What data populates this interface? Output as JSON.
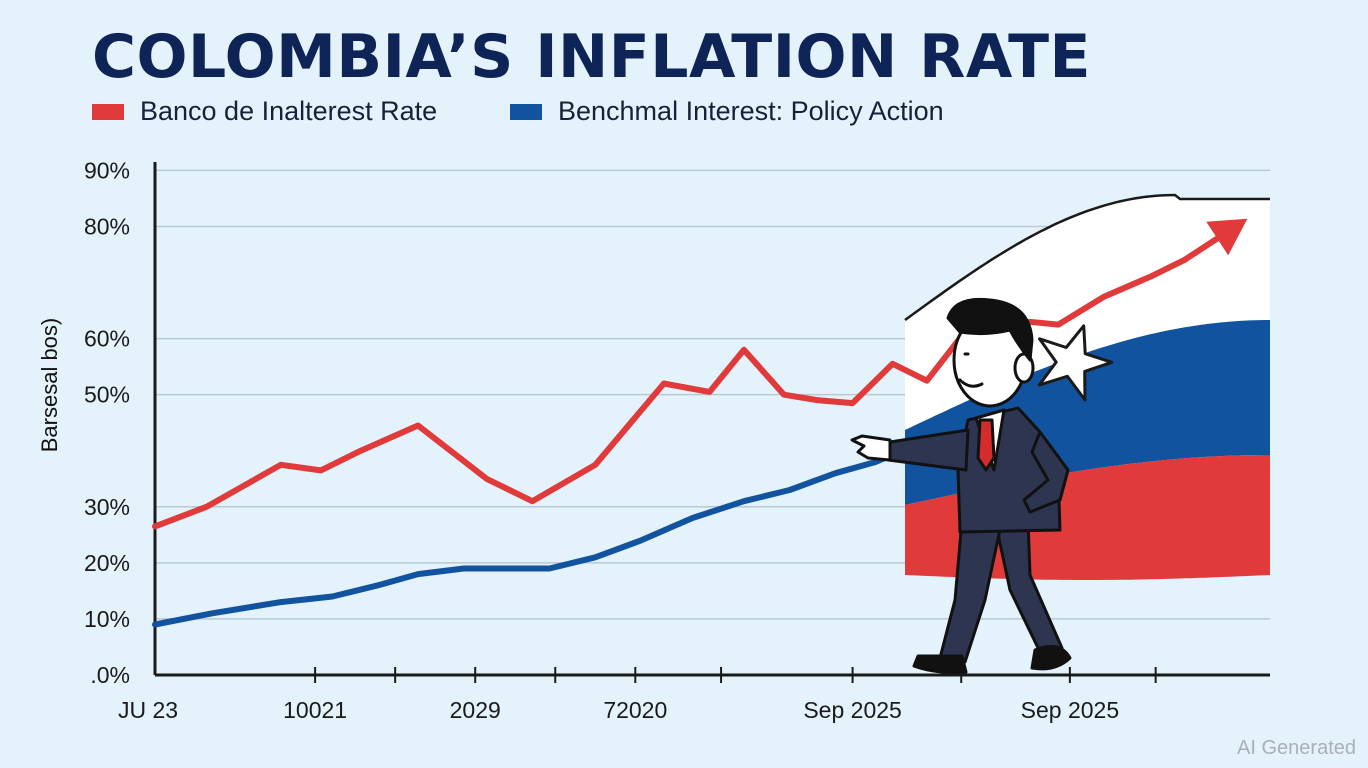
{
  "header": {
    "title": "COLOMBIA’S INFLATION RATE"
  },
  "legend": [
    {
      "label": "Banco de Inalterest Rate",
      "color": "#e03a3a"
    },
    {
      "label": "Benchmal Interest: Policy Action",
      "color": "#12539f"
    }
  ],
  "footer": {
    "watermark": "AI Generated"
  },
  "chart_data": {
    "type": "line",
    "title": "COLOMBIA’S INFLATION RATE",
    "xlabel": "",
    "ylabel": "Barsesal bos)",
    "y_tick_labels": [
      {
        "value": 0,
        "label": ".0%"
      },
      {
        "value": 10,
        "label": "10%"
      },
      {
        "value": 20,
        "label": "20%"
      },
      {
        "value": 30,
        "label": "30%"
      },
      {
        "value": 50,
        "label": "50%"
      },
      {
        "value": 60,
        "label": "60%"
      },
      {
        "value": 80,
        "label": "80%"
      },
      {
        "value": 90,
        "label": "90%"
      }
    ],
    "x_tick_labels": [
      "JU 23",
      "10021",
      "2029",
      "72020",
      "Sep 2025",
      "Sep 2025"
    ],
    "x_tick_positions": [
      0,
      1.4,
      2.8,
      4.2,
      6.1,
      8.0
    ],
    "xlim": [
      0,
      9.75
    ],
    "ylim": [
      0,
      94
    ],
    "grid": true,
    "legend_position": "top-left",
    "series": [
      {
        "name": "Banco de Inalterest Rate",
        "color": "#e03a3a",
        "arrow_end": true,
        "x": [
          0,
          0.45,
          1.1,
          1.45,
          1.8,
          2.3,
          2.9,
          3.3,
          3.85,
          4.45,
          4.85,
          5.15,
          5.5,
          5.8,
          6.1,
          6.45,
          6.75,
          7.15,
          7.4,
          7.65,
          7.9,
          8.3,
          8.7,
          9.0,
          9.45
        ],
        "y": [
          26.5,
          30,
          37.5,
          36.5,
          40,
          44.5,
          35,
          31,
          37.5,
          52,
          50.5,
          58,
          50,
          49,
          48.5,
          55.5,
          52.5,
          63,
          61,
          63,
          62.5,
          67.5,
          71,
          74,
          80
        ]
      },
      {
        "name": "Benchmal Interest: Policy Action",
        "color": "#12539f",
        "arrow_end": false,
        "x": [
          0,
          0.5,
          1.1,
          1.55,
          1.95,
          2.3,
          2.7,
          3.0,
          3.45,
          3.85,
          4.25,
          4.7,
          5.15,
          5.55,
          5.95,
          6.3,
          6.65,
          7.0
        ],
        "y": [
          9,
          11,
          13,
          14,
          16,
          18,
          19,
          19,
          19,
          21,
          24,
          28,
          31,
          33,
          36,
          38,
          41,
          44
        ]
      }
    ]
  },
  "illustration": {
    "flag_colors": [
      "#ffffff",
      "#12539f",
      "#e03a3a"
    ],
    "suit_color": "#2d3550",
    "tie_color": "#d62b2b"
  }
}
